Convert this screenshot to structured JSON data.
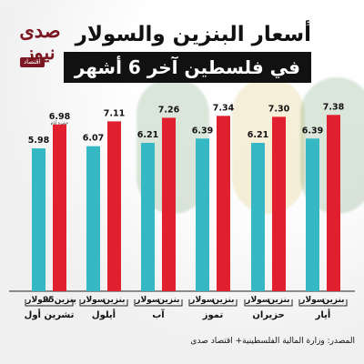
{
  "title_line1": "أسعار البنزين والسولار",
  "title_line2": "في فلسطين آخر 6 أشهر",
  "logo_text": "صدى نيوز",
  "logo_sub": "اقتصاد",
  "source": "المصدر: وزارة المالية الفلسطينية+ اقتصاد صدى",
  "colors": {
    "solar": "#35b8c4",
    "benzine": "#e0202f",
    "title_bg": "#111111",
    "logo": "#7a1720"
  },
  "chart_data": {
    "type": "bar",
    "categories": [
      "أيار",
      "حزيران",
      "تموز",
      "آب",
      "أيلول",
      "تشرين أول"
    ],
    "series": [
      {
        "name": "سولار",
        "values": [
          6.39,
          6.21,
          6.39,
          6.21,
          6.07,
          5.98
        ]
      },
      {
        "name": "بنزين",
        "values": [
          7.38,
          7.3,
          7.34,
          7.26,
          7.11,
          6.98
        ]
      }
    ],
    "series_labels": [
      [
        "سولار",
        "سولار",
        "سولار",
        "سولار",
        "سولار",
        "سولار"
      ],
      [
        "بنزين",
        "بنزين",
        "بنزين",
        "بنزين",
        "بنزين",
        "بنزين95"
      ]
    ],
    "annotations": [
      {
        "category": "تشرين أول",
        "series": "بنزين",
        "text": "عشرة أيام"
      }
    ],
    "ylim": [
      0,
      8
    ],
    "category_order": "right-to-left",
    "legend": "none",
    "grid": false
  }
}
